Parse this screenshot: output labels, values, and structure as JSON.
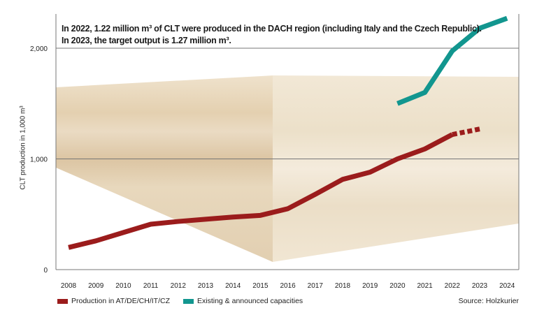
{
  "annotation": {
    "line1": "In 2022, 1.22 million m³ of CLT were produced in the DACH region (including Italy and the Czech Republic).",
    "line2": "In 2023, the target output is 1.27 million m³."
  },
  "source": "Source: Holzkurier",
  "chart_data": {
    "type": "line",
    "title": "",
    "xlabel": "",
    "ylabel": "CLT production in 1,000 m³",
    "ylim": [
      0,
      2300
    ],
    "yticks": [
      0,
      1000,
      2000
    ],
    "ytick_labels": [
      "0",
      "1,000",
      "2,000"
    ],
    "x": [
      "2008",
      "2009",
      "2010",
      "2011",
      "2012",
      "2013",
      "2014",
      "2015",
      "2016",
      "2017",
      "2018",
      "2019",
      "2020",
      "2021",
      "2022",
      "2023",
      "2024"
    ],
    "grid": "horizontal",
    "legend_position": "bottom-left",
    "series": [
      {
        "name": "Production in AT/DE/CH/IT/CZ",
        "color": "#9b1c1c",
        "x": [
          "2008",
          "2009",
          "2010",
          "2011",
          "2012",
          "2013",
          "2014",
          "2015",
          "2016",
          "2017",
          "2018",
          "2019",
          "2020",
          "2021",
          "2022",
          "2023"
        ],
        "values": [
          200,
          260,
          335,
          410,
          435,
          455,
          475,
          490,
          550,
          680,
          815,
          880,
          1000,
          1090,
          1220,
          1270
        ],
        "dashed_from": "2022"
      },
      {
        "name": "Existing & announced capacities",
        "color": "#12968f",
        "x": [
          "2020",
          "2021",
          "2022",
          "2023",
          "2024"
        ],
        "values": [
          1500,
          1600,
          1975,
          2180,
          2270
        ]
      }
    ]
  }
}
